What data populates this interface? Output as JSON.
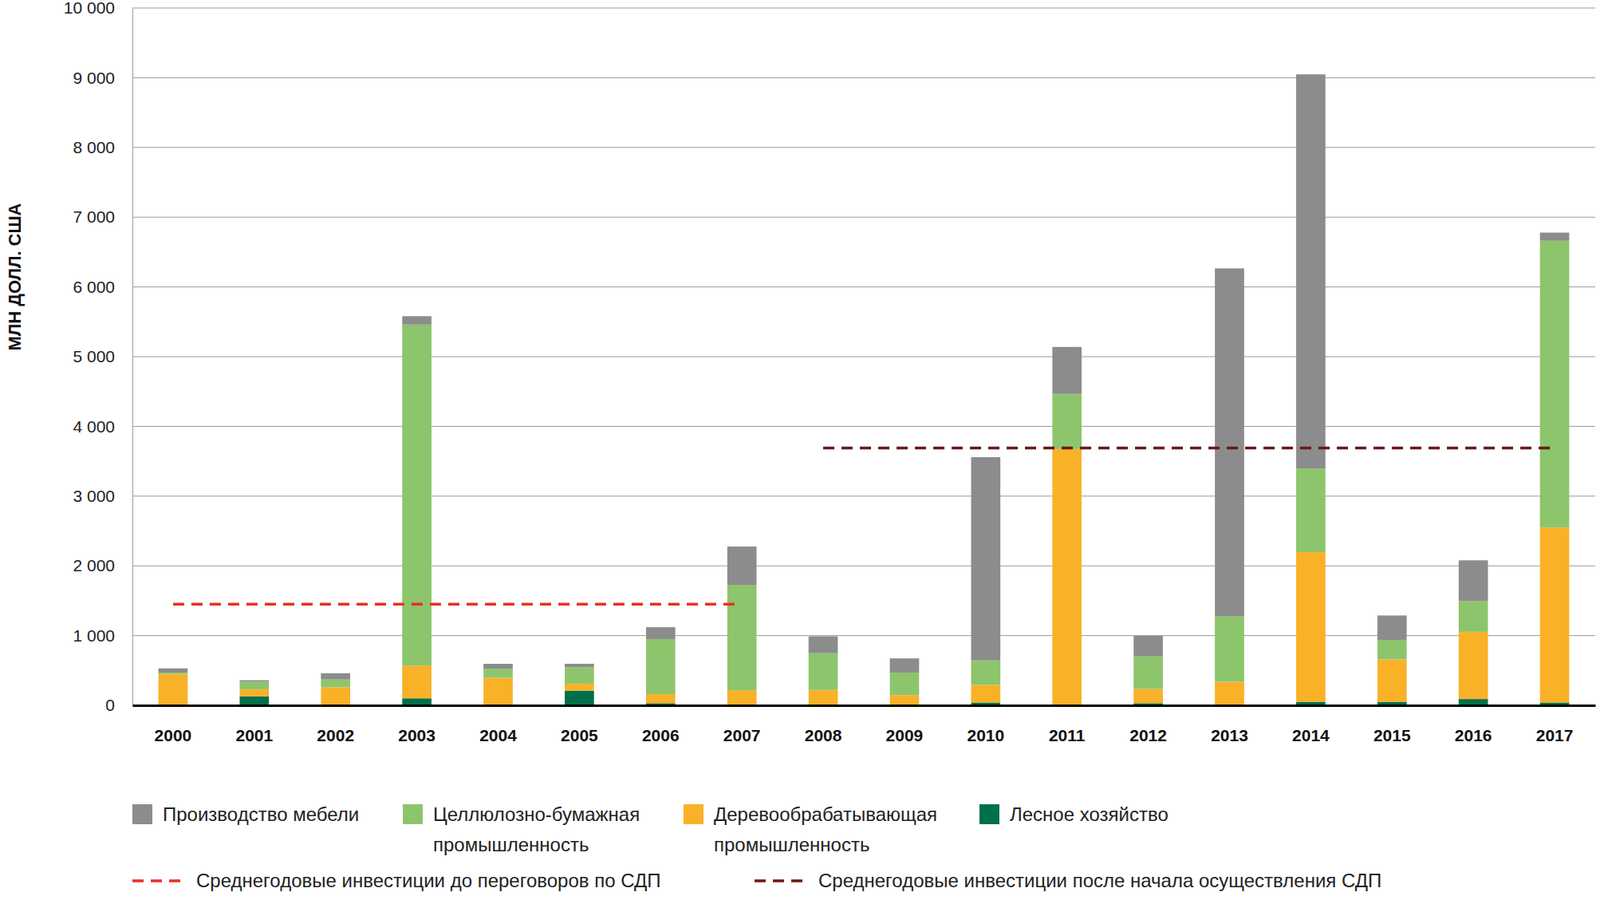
{
  "chart_data": {
    "type": "bar",
    "stacked": true,
    "grid": true,
    "legend": "bottom",
    "y_label": "МЛН ДОЛЛ. США",
    "categories": [
      "2000",
      "2001",
      "2002",
      "2003",
      "2004",
      "2005",
      "2006",
      "2007",
      "2008",
      "2009",
      "2010",
      "2011",
      "2012",
      "2013",
      "2014",
      "2015",
      "2016",
      "2017"
    ],
    "ylim": [
      0,
      10000
    ],
    "yticks": [
      0,
      {
        "value": 1000,
        "label": "1 000"
      },
      {
        "value": 2000,
        "label": "2 000"
      },
      {
        "value": 3000,
        "label": "3 000"
      },
      {
        "value": 4000,
        "label": "4 000"
      },
      {
        "value": 5000,
        "label": "5 000"
      },
      {
        "value": 6000,
        "label": "6 000"
      },
      {
        "value": 7000,
        "label": "7 000"
      },
      {
        "value": 8000,
        "label": "8 000"
      },
      {
        "value": 9000,
        "label": "9 000"
      },
      {
        "value": 10000,
        "label": "10 000"
      }
    ],
    "series": [
      {
        "name": "Производство мебели",
        "color": "#8c8c8c",
        "values": [
          60,
          20,
          90,
          120,
          70,
          50,
          170,
          550,
          243,
          205,
          2914,
          673,
          292,
          4992,
          5651,
          351,
          586,
          117
        ]
      },
      {
        "name": "Целлюлозно-бумажная промышленность",
        "color": "#8dc56c",
        "values": [
          20,
          110,
          110,
          4890,
          130,
          236,
          790,
          1511,
          527,
          322,
          351,
          791,
          469,
          937,
          1201,
          278,
          439,
          4114
        ]
      },
      {
        "name": "Деревообрабатывающая промышленность",
        "color": "#f9b128",
        "values": [
          440,
          100,
          250,
          470,
          385,
          100,
          130,
          206,
          210,
          136,
          253,
          3665,
          204,
          327,
          2146,
          609,
          964,
          2508
        ]
      },
      {
        "name": "Лесное хозяйство",
        "color": "#00704a",
        "values": [
          10,
          130,
          10,
          100,
          10,
          210,
          30,
          10,
          10,
          10,
          40,
          10,
          30,
          10,
          50,
          50,
          90,
          40
        ]
      },
      {
        "name": "Среднегодовые инвестиции до переговоров по СДП",
        "color": "#e8302a",
        "type": "line",
        "line_style": "dashed",
        "values": [
          1450,
          1450,
          1450,
          1450,
          1450,
          1450,
          1450,
          1450,
          null,
          null,
          null,
          null,
          null,
          null,
          null,
          null,
          null,
          null
        ]
      },
      {
        "name": "Среднегодовые инвестиции после начала осуществления СДП",
        "color": "#6b1a14",
        "type": "line",
        "line_style": "dashed",
        "values": [
          null,
          null,
          null,
          null,
          null,
          null,
          null,
          null,
          3690,
          3690,
          3690,
          3690,
          3690,
          3690,
          3690,
          3690,
          3690,
          3690
        ]
      }
    ]
  }
}
